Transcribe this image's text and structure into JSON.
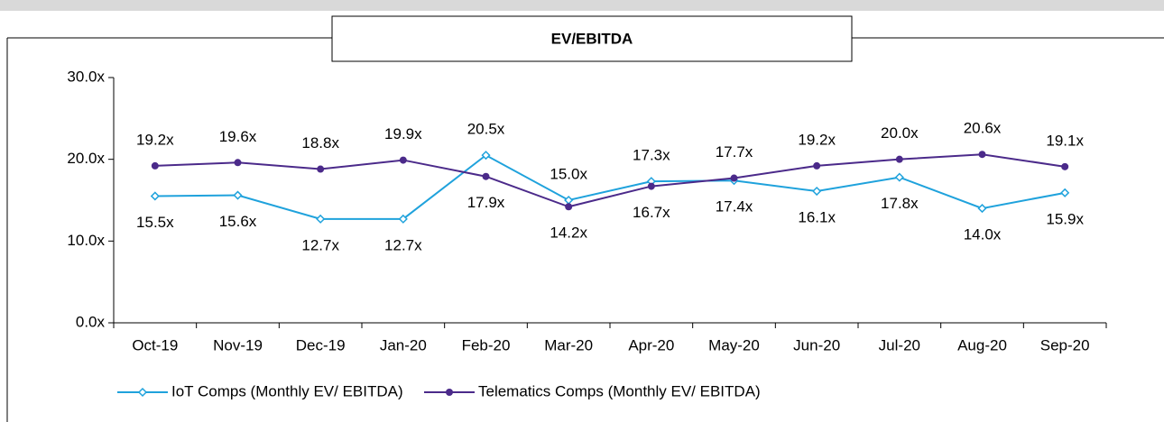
{
  "chart_data": {
    "type": "line",
    "title": "EV/EBITDA",
    "categories": [
      "Oct-19",
      "Nov-19",
      "Dec-19",
      "Jan-20",
      "Feb-20",
      "Mar-20",
      "Apr-20",
      "May-20",
      "Jun-20",
      "Jul-20",
      "Aug-20",
      "Sep-20"
    ],
    "series": [
      {
        "name": "IoT Comps (Monthly EV/ EBITDA)",
        "color": "#1fa2dc",
        "marker": "diamond",
        "values": [
          15.5,
          15.6,
          12.7,
          12.7,
          20.5,
          15.0,
          17.3,
          17.4,
          16.1,
          17.8,
          14.0,
          15.9
        ],
        "value_labels": [
          "15.5x",
          "15.6x",
          "12.7x",
          "12.7x",
          "20.5x",
          "15.0x",
          "17.3x",
          "17.4x",
          "16.1x",
          "17.8x",
          "14.0x",
          "15.9x"
        ]
      },
      {
        "name": "Telematics Comps (Monthly EV/ EBITDA)",
        "color": "#4b2a8a",
        "marker": "circle",
        "values": [
          19.2,
          19.6,
          18.8,
          19.9,
          17.9,
          14.2,
          16.7,
          17.7,
          19.2,
          20.0,
          20.6,
          19.1
        ],
        "value_labels": [
          "19.2x",
          "19.6x",
          "18.8x",
          "19.9x",
          "17.9x",
          "14.2x",
          "16.7x",
          "17.7x",
          "19.2x",
          "20.0x",
          "20.6x",
          "19.1x"
        ]
      }
    ],
    "ylim": [
      0,
      30
    ],
    "yticks": [
      {
        "value": 0,
        "label": "0.0x"
      },
      {
        "value": 10,
        "label": "10.0x"
      },
      {
        "value": 20,
        "label": "20.0x"
      },
      {
        "value": 30,
        "label": "30.0x"
      }
    ],
    "grid": false,
    "legend": "bottom"
  }
}
